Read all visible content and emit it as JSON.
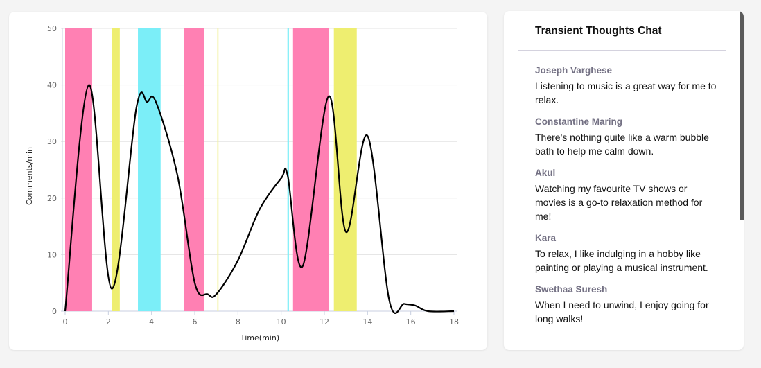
{
  "chart_data": {
    "type": "line",
    "xlabel": "Time(min)",
    "ylabel": "Comments/min",
    "xlim": [
      0,
      18
    ],
    "ylim": [
      0,
      50
    ],
    "x_ticks": [
      0,
      2,
      4,
      6,
      8,
      10,
      12,
      14,
      16,
      18
    ],
    "y_ticks": [
      0,
      10,
      20,
      30,
      40,
      50
    ],
    "grid": "horizontal",
    "line_color": "#000000",
    "series": [
      {
        "x": [
          0,
          1.1,
          2.15,
          3.3,
          3.8,
          4.2,
          5.2,
          6.0,
          6.6,
          7.0,
          8.0,
          9.0,
          10.0,
          10.3,
          11.0,
          12.2,
          13.0,
          14.0,
          15.0,
          15.7,
          16.2,
          16.8,
          18.0
        ],
        "y": [
          0,
          40,
          4,
          36,
          37,
          37,
          24,
          5,
          3,
          3,
          9,
          18,
          23.5,
          24,
          8,
          38,
          14,
          31,
          2,
          1.3,
          1,
          0,
          0
        ]
      }
    ],
    "bands": [
      {
        "start": 0,
        "end": 1.25,
        "color": "#ff80b3"
      },
      {
        "start": 2.15,
        "end": 2.53,
        "color": "#eeee70"
      },
      {
        "start": 3.37,
        "end": 4.42,
        "color": "#7beef8"
      },
      {
        "start": 5.51,
        "end": 6.44,
        "color": "#ff80b3"
      },
      {
        "start": 7.04,
        "end": 7.1,
        "color": "#f2f2a8"
      },
      {
        "start": 10.29,
        "end": 10.36,
        "color": "#7beef8"
      },
      {
        "start": 10.55,
        "end": 12.2,
        "color": "#ff80b3"
      },
      {
        "start": 12.44,
        "end": 13.5,
        "color": "#eeee70"
      }
    ]
  },
  "chat": {
    "title": "Transient Thoughts Chat",
    "messages": [
      {
        "author": "Joseph Varghese",
        "text": "Listening to music is a great way for me to relax."
      },
      {
        "author": "Constantine Maring",
        "text": "There's nothing quite like a warm bubble bath to help me calm down."
      },
      {
        "author": "Akul",
        "text": "Watching my favourite TV shows or movies is a go-to relaxation method for me!"
      },
      {
        "author": "Kara",
        "text": "To relax, I like indulging in a hobby like painting or playing a musical instrument."
      },
      {
        "author": "Swethaa Suresh",
        "text": "When I need to unwind, I enjoy going for long walks!"
      }
    ]
  }
}
